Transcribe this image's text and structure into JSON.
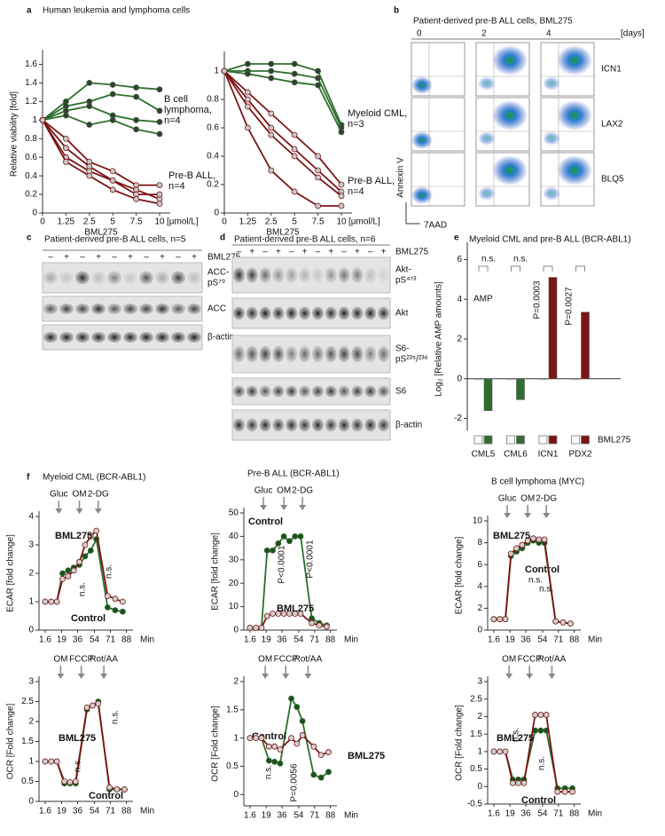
{
  "panel_labels": [
    "a",
    "b",
    "c",
    "d",
    "e",
    "f"
  ],
  "panel_a": {
    "title": "Human leukemia and lymphoma cells"
  },
  "panel_b": {
    "title": "Patient-derived pre-B ALL cells, BML275",
    "days": [
      "0",
      "2",
      "4"
    ],
    "days_unit": "[days]",
    "rows": [
      "ICN1",
      "LAX2",
      "BLQ5"
    ],
    "y_label": "Annexin V",
    "x_label": "7AAD"
  },
  "panel_c": {
    "title": "Patient-derived pre-B ALL cells, n=5",
    "treatment_signs": [
      "–",
      "+",
      "–",
      "+",
      "–",
      "+",
      "–",
      "+",
      "–",
      "+"
    ],
    "treatment": "BML275",
    "rows": [
      {
        "lines": [
          "ACC-",
          "pS⁷⁹"
        ]
      },
      {
        "lines": [
          "ACC"
        ]
      },
      {
        "lines": [
          "β-actin"
        ]
      }
    ]
  },
  "panel_d": {
    "title": "Patient-derived  pre-B ALL cells, n=6",
    "treatment_signs": [
      "–",
      "+",
      "–",
      "+",
      "–",
      "+",
      "–",
      "+",
      "–",
      "+",
      "–",
      "+"
    ],
    "treatment": "BML275",
    "rows": [
      {
        "lines": [
          "Akt-",
          "pS⁴⁷³"
        ]
      },
      {
        "lines": [
          "Akt"
        ]
      },
      {
        "lines": [
          "S6-",
          "pS²³⁵/²³⁶"
        ]
      },
      {
        "lines": [
          "S6"
        ]
      },
      {
        "lines": [
          "β-actin"
        ]
      }
    ]
  },
  "chart_data": [
    {
      "type": "line",
      "categories": [
        "0",
        "1.25",
        "2.5",
        "5",
        "7.5",
        "10"
      ],
      "x_label": "BML275",
      "x_unit": "[µmol/L]",
      "y_label": "Relative viability [fold]",
      "ylim": [
        0,
        1.7
      ],
      "yticks": [
        0,
        0.2,
        0.4,
        0.6,
        0.8,
        1,
        1.2,
        1.4,
        1.6
      ],
      "series": [
        {
          "color": "#2e6e2e",
          "marker_color": "#3a3a3a",
          "values": [
            1,
            1.2,
            1.4,
            1.38,
            1.35,
            1.33
          ]
        },
        {
          "color": "#2e6e2e",
          "marker_color": "#3a3a3a",
          "values": [
            1,
            1.15,
            1.2,
            1.28,
            1.25,
            1.1
          ]
        },
        {
          "color": "#2e6e2e",
          "marker_color": "#3a3a3a",
          "values": [
            1,
            1.1,
            1.15,
            1.05,
            1.0,
            0.98
          ]
        },
        {
          "color": "#2e6e2e",
          "marker_color": "#3a3a3a",
          "values": [
            1,
            1.05,
            0.95,
            1.0,
            0.9,
            0.85
          ]
        },
        {
          "color": "#7b1414",
          "marker_color": "#c8c8c8",
          "values": [
            1,
            0.8,
            0.55,
            0.45,
            0.3,
            0.3
          ]
        },
        {
          "color": "#7b1414",
          "marker_color": "#c8c8c8",
          "values": [
            1,
            0.7,
            0.5,
            0.35,
            0.25,
            0.15
          ]
        },
        {
          "color": "#7b1414",
          "marker_color": "#c8c8c8",
          "values": [
            1,
            0.6,
            0.45,
            0.35,
            0.2,
            0.2
          ]
        },
        {
          "color": "#7b1414",
          "marker_color": "#c8c8c8",
          "values": [
            1,
            0.55,
            0.4,
            0.25,
            0.15,
            0.1
          ]
        }
      ],
      "annotations": [
        {
          "lines": [
            "B cell",
            "lymphoma,",
            "n=4"
          ],
          "color": "#2e6e2e"
        },
        {
          "lines": [
            "Pre-B ALL,",
            "n=4"
          ],
          "color": "#7b1414"
        }
      ]
    },
    {
      "type": "line",
      "categories": [
        "0",
        "1.25",
        "2.5",
        "5",
        "7.5",
        "10"
      ],
      "x_label": "BML275",
      "x_unit": "[µmol/L]",
      "ylim": [
        0,
        1.1
      ],
      "yticks": [
        0,
        0.2,
        0.4,
        0.6,
        0.8,
        1
      ],
      "series": [
        {
          "color": "#2e6e2e",
          "marker_color": "#3a3a3a",
          "values": [
            1,
            1.05,
            1.05,
            1.05,
            1.0,
            0.62
          ]
        },
        {
          "color": "#2e6e2e",
          "marker_color": "#3a3a3a",
          "values": [
            1,
            1.0,
            1.0,
            0.98,
            0.95,
            0.6
          ]
        },
        {
          "color": "#2e6e2e",
          "marker_color": "#3a3a3a",
          "values": [
            1,
            0.98,
            0.95,
            0.92,
            0.9,
            0.57
          ]
        },
        {
          "color": "#7b1414",
          "marker_color": "#c8c8c8",
          "values": [
            1,
            0.85,
            0.7,
            0.55,
            0.4,
            0.2
          ]
        },
        {
          "color": "#7b1414",
          "marker_color": "#c8c8c8",
          "values": [
            1,
            0.8,
            0.6,
            0.45,
            0.3,
            0.15
          ]
        },
        {
          "color": "#7b1414",
          "marker_color": "#c8c8c8",
          "values": [
            1,
            0.75,
            0.55,
            0.4,
            0.25,
            0.12
          ]
        },
        {
          "color": "#7b1414",
          "marker_color": "#c8c8c8",
          "values": [
            1,
            0.6,
            0.3,
            0.15,
            0.05,
            0.05
          ]
        }
      ],
      "annotations": [
        {
          "lines": [
            "Myeloid CML,",
            "n=3"
          ],
          "color": "#2e6e2e"
        },
        {
          "lines": [
            "Pre-B ALL,",
            "n=4"
          ],
          "color": "#7b1414"
        }
      ]
    },
    {
      "type": "bar",
      "title": "Myeloid CML and pre-B ALL (BCR-ABL1)",
      "categories": [
        "CML5",
        "CML6",
        "ICN1",
        "PDX2"
      ],
      "y_label": "Log₂ [Relative AMP amounts]",
      "ylim": [
        -2.6,
        6.6
      ],
      "yticks": [
        -2,
        0,
        2,
        4,
        6
      ],
      "series": [
        {
          "color": "#ffffff",
          "values": [
            0,
            0,
            0,
            0
          ]
        },
        {
          "name": "BML275",
          "colors": [
            "#2e6e2e",
            "#2e6e2e",
            "#7b1414",
            "#7b1414"
          ],
          "values": [
            -1.6,
            -1.05,
            5.1,
            3.35
          ]
        }
      ],
      "annotations": [
        {
          "lines": [
            "n.s."
          ]
        },
        {
          "lines": [
            "n.s."
          ]
        },
        {
          "lines": [
            "P=0.0003"
          ]
        },
        {
          "lines": [
            "P=0.0027"
          ]
        },
        {
          "lines": [
            "AMP"
          ]
        }
      ]
    },
    {
      "type": "line",
      "title": "Myeloid CML (BCR-ABL1)",
      "injections": [
        "Gluc",
        "OM",
        "2-DG"
      ],
      "x": [
        1.6,
        8,
        14,
        20,
        26,
        32,
        38,
        44,
        50,
        56,
        68,
        76,
        84
      ],
      "xlim": [
        -5,
        95
      ],
      "xticks": [
        1.6,
        19,
        36,
        54,
        71,
        88
      ],
      "x_unit": "Min",
      "y_label": "ECAR [fold change]",
      "ylim": [
        0,
        4
      ],
      "yticks": [
        0,
        1,
        2,
        3,
        4
      ],
      "series": [
        {
          "name": "Control",
          "color": "#2e6e2e",
          "marker_color": "#1f4f1f",
          "values": [
            1,
            1,
            1,
            2.0,
            2.1,
            2.2,
            2.3,
            2.6,
            2.8,
            3.2,
            0.8,
            0.7,
            0.65
          ]
        },
        {
          "name": "BML275",
          "color": "#7b1414",
          "marker_color": "#d0d0d0",
          "values": [
            1,
            1,
            1,
            1.8,
            1.9,
            2.1,
            2.4,
            3.0,
            3.3,
            3.5,
            1.2,
            1.1,
            1.0
          ]
        }
      ],
      "annotations": [
        {
          "lines": [
            "n.s."
          ]
        },
        {
          "lines": [
            "n.s."
          ]
        }
      ]
    },
    {
      "type": "line",
      "title": "Pre-B ALL (BCR-ABL1)",
      "injections": [
        "Gluc",
        "OM",
        "2-DG"
      ],
      "x": [
        1.6,
        8,
        14,
        20,
        26,
        32,
        38,
        44,
        50,
        56,
        68,
        76,
        84
      ],
      "xlim": [
        -5,
        95
      ],
      "xticks": [
        1.6,
        19,
        36,
        54,
        71,
        88
      ],
      "x_unit": "Min",
      "y_label": "ECAR [fold change]",
      "ylim": [
        0,
        50
      ],
      "yticks": [
        0,
        10,
        20,
        30,
        40,
        50
      ],
      "series": [
        {
          "name": "Control",
          "color": "#2e6e2e",
          "marker_color": "#1f4f1f",
          "values": [
            1,
            1,
            1,
            34,
            34,
            37,
            40,
            38,
            40,
            40,
            5,
            3,
            2
          ]
        },
        {
          "name": "BML275",
          "color": "#7b1414",
          "marker_color": "#d0d0d0",
          "values": [
            1,
            1,
            1,
            6,
            7,
            7,
            7,
            7,
            7,
            7,
            3,
            2,
            1.5
          ]
        }
      ],
      "annotations": [
        {
          "lines": [
            "P<0.0001"
          ]
        },
        {
          "lines": [
            "P<0.0001"
          ]
        }
      ]
    },
    {
      "type": "line",
      "title": "B cell lymphoma (MYC)",
      "injections": [
        "Gluc",
        "OM",
        "2-DG"
      ],
      "x": [
        1.6,
        8,
        14,
        20,
        26,
        32,
        38,
        44,
        50,
        56,
        68,
        76,
        84
      ],
      "xlim": [
        -5,
        95
      ],
      "xticks": [
        1.6,
        19,
        36,
        54,
        71,
        88
      ],
      "x_unit": "Min",
      "y_label": "ECAR [fold change]",
      "ylim": [
        0,
        10
      ],
      "yticks": [
        0,
        2,
        4,
        6,
        8,
        10
      ],
      "series": [
        {
          "name": "Control",
          "color": "#2e6e2e",
          "marker_color": "#1f4f1f",
          "values": [
            1,
            1,
            1,
            6.8,
            7.2,
            7.5,
            8,
            8.2,
            8,
            8,
            0.8,
            0.7,
            0.6
          ]
        },
        {
          "name": "BML275",
          "color": "#7b1414",
          "marker_color": "#d0d0d0",
          "values": [
            1,
            1,
            1,
            7,
            7.5,
            7.8,
            8.2,
            8.4,
            8.3,
            8.3,
            0.8,
            0.7,
            0.6
          ]
        }
      ],
      "annotations": [
        {
          "lines": [
            "n.s."
          ]
        },
        {
          "lines": [
            "n.s."
          ]
        }
      ]
    },
    {
      "type": "line",
      "injections": [
        "OM",
        "FCCP",
        "Rot/AA"
      ],
      "x": [
        1.6,
        8,
        14,
        22,
        28,
        34,
        46,
        52,
        58,
        70,
        78,
        86
      ],
      "xlim": [
        -5,
        95
      ],
      "xticks": [
        1.6,
        19,
        36,
        54,
        71,
        88
      ],
      "x_unit": "Min",
      "y_label": "OCR [Fold change]",
      "ylim": [
        0,
        3
      ],
      "yticks": [
        0,
        0.5,
        1,
        1.5,
        2,
        2.5,
        3
      ],
      "series": [
        {
          "name": "Control",
          "color": "#2e6e2e",
          "marker_color": "#1f4f1f",
          "values": [
            1,
            1,
            1,
            0.45,
            0.45,
            0.45,
            2.3,
            2.4,
            2.5,
            0.3,
            0.3,
            0.3
          ]
        },
        {
          "name": "BML275",
          "color": "#7b1414",
          "marker_color": "#d0d0d0",
          "values": [
            1,
            1,
            1,
            0.5,
            0.48,
            0.5,
            2.35,
            2.4,
            2.45,
            0.35,
            0.3,
            0.3
          ]
        }
      ],
      "annotations": [
        {
          "lines": [
            "n.s."
          ]
        },
        {
          "lines": [
            "n.s."
          ]
        }
      ]
    },
    {
      "type": "line",
      "injections": [
        "OM",
        "FCCP",
        "Rot/AA"
      ],
      "x": [
        1.6,
        8,
        14,
        22,
        28,
        34,
        46,
        52,
        58,
        70,
        78,
        86
      ],
      "xlim": [
        -5,
        95
      ],
      "xticks": [
        1.6,
        19,
        36,
        54,
        71,
        88
      ],
      "x_unit": "Min",
      "y_label": "OCR [Fold change]",
      "ylim": [
        -0.2,
        2
      ],
      "yticks": [
        0,
        0.5,
        1,
        1.5,
        2
      ],
      "series": [
        {
          "name": "Control",
          "color": "#2e6e2e",
          "marker_color": "#1f4f1f",
          "values": [
            1,
            1,
            1,
            0.6,
            0.58,
            0.55,
            1.7,
            1.55,
            1.3,
            0.35,
            0.3,
            0.4
          ]
        },
        {
          "name": "BML275",
          "color": "#7b1414",
          "marker_color": "#d0d0d0",
          "values": [
            1,
            1,
            1,
            0.85,
            0.85,
            0.8,
            1.0,
            0.9,
            1.05,
            0.85,
            0.7,
            0.75
          ]
        }
      ],
      "annotations": [
        {
          "lines": [
            "n.s."
          ]
        },
        {
          "lines": [
            "P=0.0056"
          ]
        }
      ]
    },
    {
      "type": "line",
      "injections": [
        "OM",
        "FCCP",
        "Rot/AA"
      ],
      "x": [
        1.6,
        8,
        14,
        22,
        28,
        34,
        46,
        52,
        58,
        70,
        78,
        86
      ],
      "xlim": [
        -5,
        95
      ],
      "xticks": [
        1.6,
        19,
        36,
        54,
        71,
        88
      ],
      "x_unit": "Min",
      "y_label": "OCR [Fold change]",
      "ylim": [
        -0.5,
        3
      ],
      "yticks": [
        -0.5,
        0,
        0.5,
        1,
        1.5,
        2,
        2.5,
        3
      ],
      "series": [
        {
          "name": "Control",
          "color": "#2e6e2e",
          "marker_color": "#1f4f1f",
          "values": [
            1,
            1,
            1,
            0.2,
            0.2,
            0.2,
            1.6,
            1.6,
            1.6,
            -0.05,
            -0.05,
            -0.05
          ]
        },
        {
          "name": "BML275",
          "color": "#7b1414",
          "marker_color": "#d0d0d0",
          "values": [
            1,
            1,
            1,
            0.1,
            0.1,
            0.1,
            2.05,
            2.05,
            2.05,
            -0.15,
            -0.15,
            -0.15
          ]
        }
      ],
      "annotations": [
        {
          "lines": [
            "n.s."
          ]
        },
        {
          "lines": [
            "n.s."
          ]
        }
      ]
    }
  ]
}
